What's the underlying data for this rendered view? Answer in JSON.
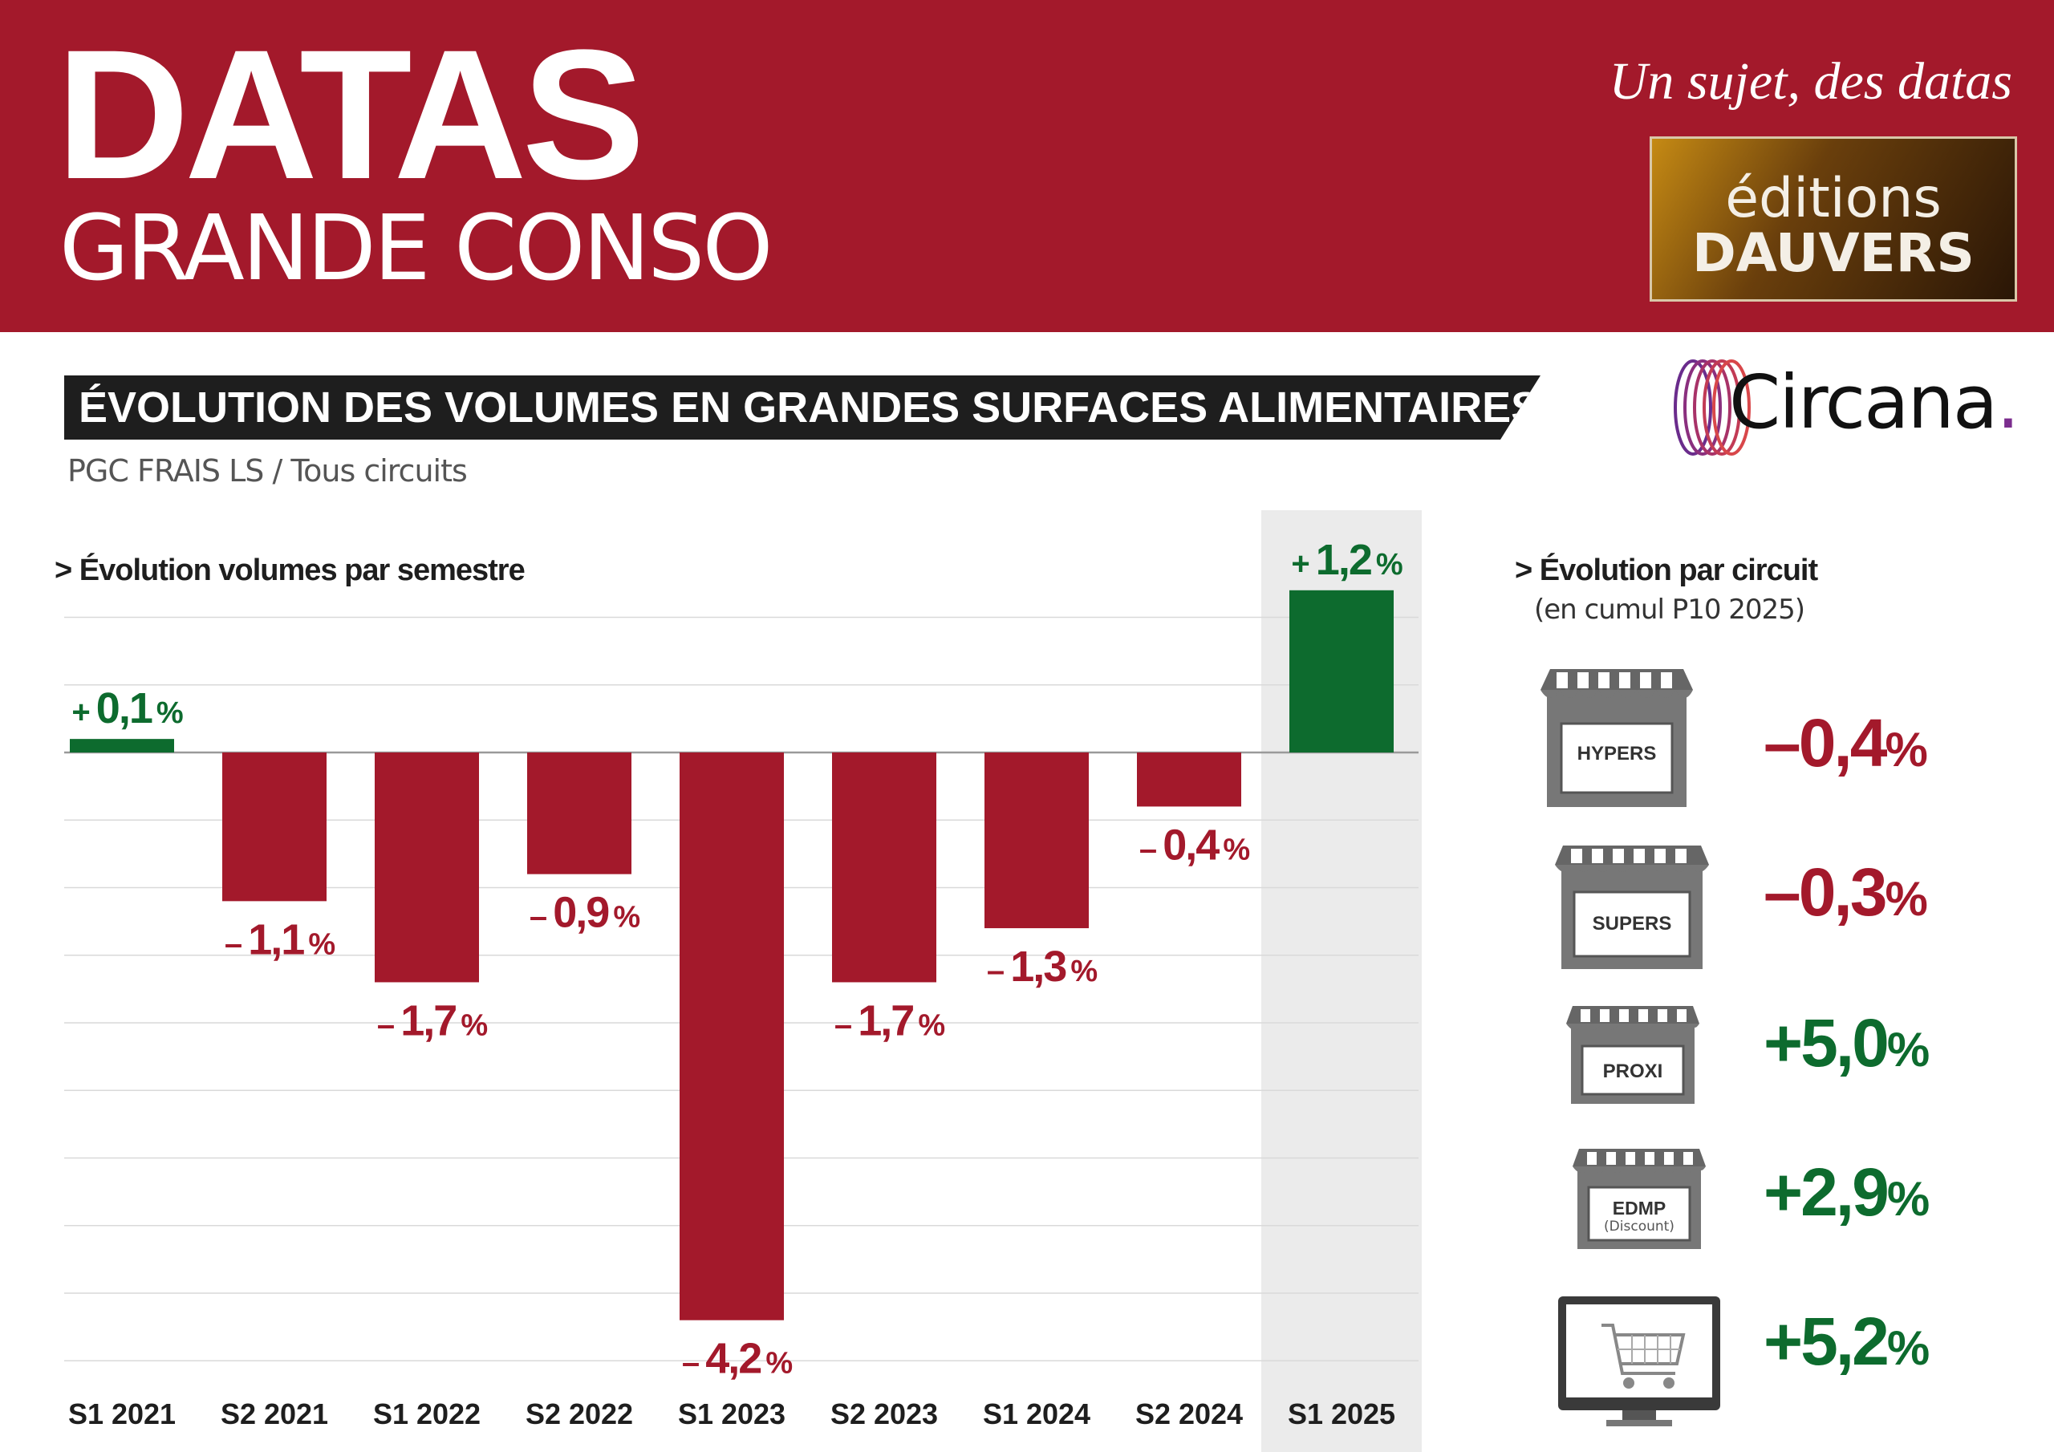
{
  "header": {
    "logo_main": "DATAS",
    "logo_sub": "GRANDE CONSO",
    "tagline": "Un sujet, des datas",
    "publisher_line1": "éditions",
    "publisher_line2": "DAUVERS"
  },
  "title": "ÉVOLUTION DES VOLUMES EN GRANDES SURFACES ALIMENTAIRES",
  "subtitle": "PGC FRAIS LS / Tous circuits",
  "brand": {
    "name": "Circana",
    "dot": "."
  },
  "colors": {
    "negative": "#a3192b",
    "positive": "#0d6b2e",
    "highlight": "#ebebeb"
  },
  "left_section": {
    "label": "> Évolution volumes par semestre"
  },
  "right_section": {
    "label": "> Évolution par circuit",
    "note": "(en cumul P10 2025)"
  },
  "chart_data": [
    {
      "type": "bar",
      "title": "> Évolution volumes par semestre",
      "categories": [
        "S1 2021",
        "S2 2021",
        "S1 2022",
        "S2 2022",
        "S1 2023",
        "S2 2023",
        "S1 2024",
        "S2 2024",
        "S1 2025"
      ],
      "values": [
        0.1,
        -1.1,
        -1.7,
        -0.9,
        -4.2,
        -1.7,
        -1.3,
        -0.4,
        1.2
      ],
      "labels": [
        {
          "sign": "+",
          "num": "0,1",
          "unit": "%"
        },
        {
          "sign": "–",
          "num": "1,1",
          "unit": "%"
        },
        {
          "sign": "–",
          "num": "1,7",
          "unit": "%"
        },
        {
          "sign": "–",
          "num": "0,9",
          "unit": "%"
        },
        {
          "sign": "–",
          "num": "4,2",
          "unit": "%"
        },
        {
          "sign": "–",
          "num": "1,7",
          "unit": "%"
        },
        {
          "sign": "–",
          "num": "1,3",
          "unit": "%"
        },
        {
          "sign": "–",
          "num": "0,4",
          "unit": "%"
        },
        {
          "sign": "+",
          "num": "1,2",
          "unit": "%"
        }
      ],
      "highlight_category": "S1 2025",
      "ylim": [
        -4.5,
        1.0
      ],
      "grid": true
    },
    {
      "type": "table",
      "title": "> Évolution par circuit",
      "rows": [
        {
          "circuit": "HYPERS",
          "value": -0.4,
          "text": "0,4",
          "sign": "–"
        },
        {
          "circuit": "SUPERS",
          "value": -0.3,
          "text": "0,3",
          "sign": "–"
        },
        {
          "circuit": "PROXI",
          "value": 5.0,
          "text": "5,0",
          "sign": "+"
        },
        {
          "circuit": "EDMP",
          "note": "(Discount)",
          "value": 2.9,
          "text": "2,9",
          "sign": "+"
        },
        {
          "circuit": "",
          "icon": "e-commerce-cart-icon",
          "value": 5.2,
          "text": "5,2",
          "sign": "+"
        }
      ],
      "unit": "%"
    }
  ]
}
